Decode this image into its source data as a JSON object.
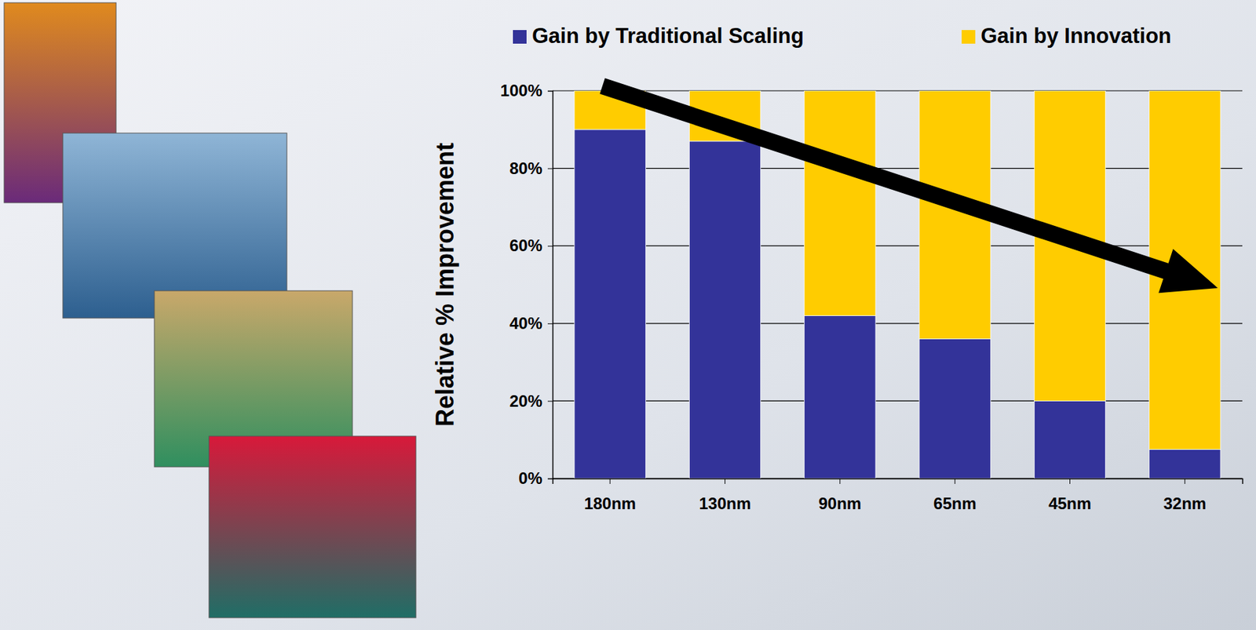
{
  "chart_data": {
    "type": "bar",
    "stacked": true,
    "grid": true,
    "legend": "top",
    "ylabel": "Relative % Improvement",
    "categories": [
      "180nm",
      "130nm",
      "90nm",
      "65nm",
      "45nm",
      "32nm"
    ],
    "series": [
      {
        "name": "Gain by Traditional Scaling",
        "color": "#333399",
        "values": [
          90,
          87,
          42,
          36,
          20,
          7.5
        ]
      },
      {
        "name": "Gain by Innovation",
        "color": "#ffcc00",
        "values": [
          10,
          13,
          58,
          64,
          80,
          92.5
        ]
      }
    ],
    "ylim": [
      0,
      100
    ],
    "yticks": [
      {
        "value": 0,
        "label": "0%"
      },
      {
        "value": 20,
        "label": "20%"
      },
      {
        "value": 40,
        "label": "40%"
      },
      {
        "value": 60,
        "label": "60%"
      },
      {
        "value": 80,
        "label": "80%"
      },
      {
        "value": 100,
        "label": "100%"
      }
    ]
  }
}
